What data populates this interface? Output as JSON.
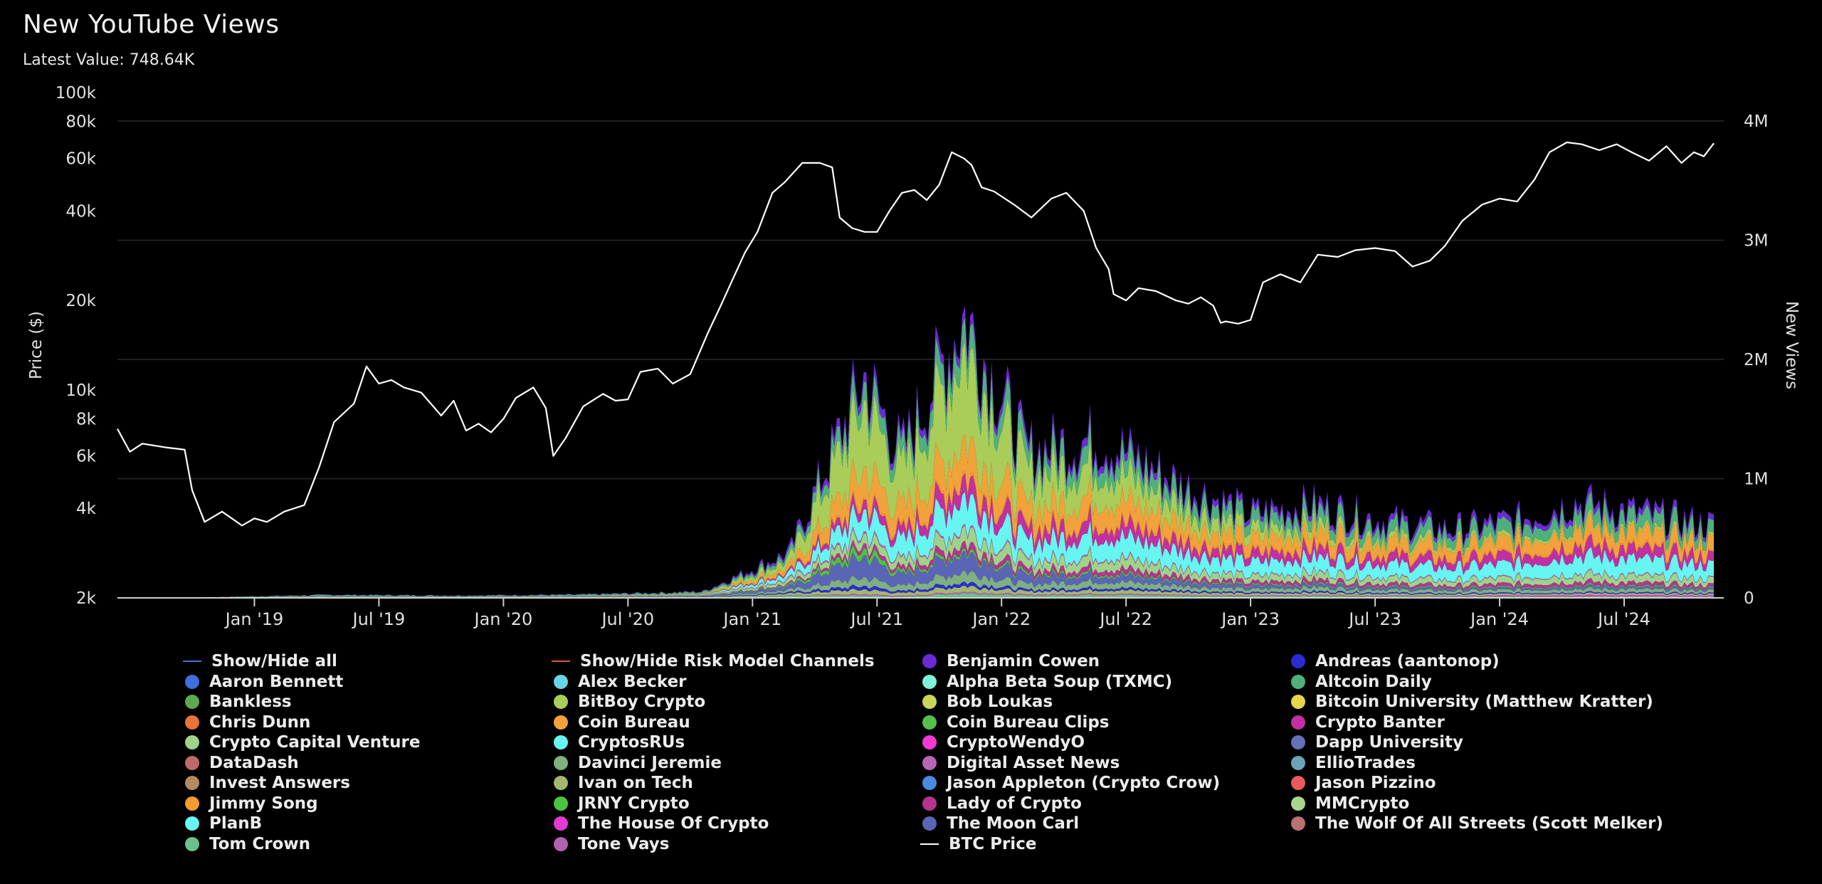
{
  "header": {
    "title": "New YouTube Views",
    "latest": "Latest Value: 748.64K"
  },
  "chart_data": {
    "type": "area",
    "title": "New YouTube Views",
    "ylabel_left": "Price ($)",
    "ylabel_right": "New Views",
    "left_axis": {
      "scale": "log",
      "ylim": [
        2000,
        100000
      ],
      "ticks": [
        2000,
        4000,
        6000,
        8000,
        10000,
        20000,
        40000,
        60000,
        80000,
        100000
      ],
      "tick_labels": [
        "2k",
        "4k",
        "6k",
        "8k",
        "10k",
        "20k",
        "40k",
        "60k",
        "80k",
        "100k"
      ]
    },
    "right_axis": {
      "scale": "linear",
      "ylim": [
        0,
        4000000
      ],
      "ticks": [
        0,
        1000000,
        2000000,
        3000000,
        4000000
      ],
      "tick_labels": [
        "0",
        "1M",
        "2M",
        "3M",
        "4M"
      ]
    },
    "x_axis": {
      "start": 2018.45,
      "end": 2024.9,
      "ticks": [
        2019.0,
        2019.5,
        2020.0,
        2020.5,
        2021.0,
        2021.5,
        2022.0,
        2022.5,
        2023.0,
        2023.5,
        2024.0,
        2024.5
      ],
      "tick_labels": [
        "Jan '19",
        "Jul '19",
        "Jan '20",
        "Jul '20",
        "Jan '21",
        "Jul '21",
        "Jan '22",
        "Jul '22",
        "Jan '23",
        "Jul '23",
        "Jan '24",
        "Jul '24"
      ]
    },
    "btc_price": {
      "name": "BTC Price",
      "color": "#ffffff",
      "x": [
        2018.45,
        2018.5,
        2018.55,
        2018.65,
        2018.72,
        2018.75,
        2018.8,
        2018.87,
        2018.95,
        2019.0,
        2019.05,
        2019.12,
        2019.2,
        2019.26,
        2019.32,
        2019.4,
        2019.45,
        2019.5,
        2019.55,
        2019.6,
        2019.67,
        2019.75,
        2019.8,
        2019.85,
        2019.9,
        2019.95,
        2020.0,
        2020.05,
        2020.12,
        2020.17,
        2020.2,
        2020.25,
        2020.32,
        2020.4,
        2020.45,
        2020.5,
        2020.55,
        2020.62,
        2020.68,
        2020.75,
        2020.82,
        2020.87,
        2020.92,
        2020.97,
        2021.02,
        2021.08,
        2021.13,
        2021.2,
        2021.27,
        2021.32,
        2021.35,
        2021.4,
        2021.45,
        2021.5,
        2021.55,
        2021.6,
        2021.65,
        2021.7,
        2021.75,
        2021.8,
        2021.85,
        2021.88,
        2021.92,
        2021.97,
        2022.05,
        2022.12,
        2022.2,
        2022.26,
        2022.33,
        2022.38,
        2022.43,
        2022.45,
        2022.5,
        2022.55,
        2022.62,
        2022.7,
        2022.75,
        2022.8,
        2022.85,
        2022.88,
        2022.9,
        2022.95,
        2023.0,
        2023.05,
        2023.12,
        2023.2,
        2023.27,
        2023.35,
        2023.42,
        2023.5,
        2023.58,
        2023.65,
        2023.72,
        2023.78,
        2023.85,
        2023.93,
        2024.0,
        2024.07,
        2024.14,
        2024.2,
        2024.27,
        2024.33,
        2024.4,
        2024.47,
        2024.53,
        2024.6,
        2024.67,
        2024.73,
        2024.78,
        2024.82,
        2024.86
      ],
      "y": [
        7400,
        6200,
        6600,
        6400,
        6300,
        4600,
        3600,
        3900,
        3500,
        3700,
        3600,
        3900,
        4100,
        5500,
        7800,
        9000,
        12000,
        10500,
        10800,
        10200,
        9800,
        8200,
        9200,
        7300,
        7700,
        7200,
        8000,
        9400,
        10200,
        8700,
        6000,
        6900,
        8800,
        9700,
        9200,
        9300,
        11500,
        11800,
        10500,
        11300,
        15500,
        19000,
        23500,
        29000,
        34000,
        46000,
        50000,
        58000,
        58000,
        56000,
        38000,
        35000,
        34000,
        34000,
        40000,
        46000,
        47000,
        43500,
        49000,
        63000,
        60000,
        57000,
        48000,
        46500,
        42000,
        38000,
        44000,
        46000,
        40000,
        30000,
        25500,
        21000,
        20000,
        22000,
        21500,
        20000,
        19500,
        20500,
        19200,
        16800,
        17000,
        16700,
        17200,
        23000,
        24500,
        23000,
        28500,
        28000,
        29500,
        30000,
        29300,
        26000,
        27200,
        30500,
        37000,
        42000,
        44000,
        43000,
        51000,
        63000,
        68000,
        67000,
        64000,
        67000,
        63000,
        59000,
        66000,
        58000,
        63000,
        61000,
        67500
      ]
    },
    "stack_series": [
      {
        "name": "Tom Crown",
        "color": "#6bbf8b",
        "values": [
          0,
          1000,
          3000,
          1500,
          2000,
          3000,
          18000,
          22000,
          10000,
          42000,
          20000,
          28000,
          20000,
          13000,
          18000,
          14000,
          12000,
          12000,
          12000,
          10000
        ]
      },
      {
        "name": "The House Of Crypto",
        "color": "#e33ad6",
        "values": [
          0,
          0,
          0,
          0,
          0,
          0,
          2000,
          8000,
          5000,
          9000,
          6000,
          8000,
          6000,
          5000,
          6000,
          5000,
          4000,
          8000,
          12000,
          9000
        ]
      },
      {
        "name": "Ivan on Tech",
        "color": "#a3b86a",
        "values": [
          0,
          0,
          0,
          0,
          1000,
          2000,
          15000,
          40000,
          22000,
          50000,
          25000,
          32000,
          25000,
          16000,
          20000,
          16000,
          13000,
          13000,
          15000,
          12000
        ]
      },
      {
        "name": "Andreas (aantonop)",
        "color": "#2b2bd6",
        "values": [
          0,
          0,
          1000,
          1000,
          1000,
          2000,
          10000,
          30000,
          15000,
          32000,
          15000,
          20000,
          14000,
          10000,
          12000,
          10000,
          8000,
          8000,
          9000,
          8000
        ]
      },
      {
        "name": "Davinci Jeremie",
        "color": "#7fb07f",
        "values": [
          0,
          1000,
          4000,
          2000,
          2000,
          4000,
          20000,
          70000,
          40000,
          90000,
          45000,
          55000,
          38000,
          26000,
          34000,
          26000,
          22000,
          25000,
          30000,
          22000
        ]
      },
      {
        "name": "The Moon Carl",
        "color": "#5a66b5",
        "values": [
          0,
          0,
          0,
          0,
          1000,
          3000,
          30000,
          180000,
          90000,
          160000,
          70000,
          60000,
          40000,
          25000,
          25000,
          20000,
          15000,
          16000,
          20000,
          14000
        ]
      },
      {
        "name": "JRNY Crypto",
        "color": "#4cc441",
        "values": [
          0,
          0,
          0,
          0,
          0,
          0,
          10000,
          60000,
          20000,
          25000,
          14000,
          16000,
          12000,
          9000,
          10000,
          8000,
          7000,
          8000,
          9000,
          7000
        ]
      },
      {
        "name": "Lady of Crypto",
        "color": "#b5338f",
        "values": [
          0,
          0,
          0,
          1000,
          1000,
          2000,
          10000,
          40000,
          30000,
          60000,
          35000,
          45000,
          35000,
          25000,
          32000,
          26000,
          22000,
          26000,
          32000,
          25000
        ]
      },
      {
        "name": "Crypto Capital Venture",
        "color": "#9fd38a",
        "values": [
          0,
          0,
          2000,
          2000,
          3000,
          5000,
          30000,
          80000,
          60000,
          120000,
          70000,
          90000,
          60000,
          45000,
          55000,
          48000,
          40000,
          46000,
          60000,
          45000
        ]
      },
      {
        "name": "Tone Vays",
        "color": "#b260b0",
        "values": [
          0,
          1000,
          3000,
          2000,
          2000,
          3000,
          10000,
          20000,
          12000,
          18000,
          12000,
          14000,
          10000,
          8000,
          9000,
          8000,
          7000,
          8000,
          9000,
          7000
        ]
      },
      {
        "name": "CryptosRUs",
        "color": "#67f5f2",
        "values": [
          0,
          0,
          2000,
          2000,
          3000,
          5000,
          40000,
          180000,
          150000,
          260000,
          150000,
          180000,
          140000,
          110000,
          120000,
          110000,
          100000,
          110000,
          150000,
          110000
        ]
      },
      {
        "name": "Crypto Banter",
        "color": "#c22fa0",
        "values": [
          0,
          0,
          0,
          0,
          0,
          1000,
          15000,
          80000,
          70000,
          150000,
          90000,
          110000,
          85000,
          70000,
          80000,
          72000,
          65000,
          75000,
          95000,
          70000
        ]
      },
      {
        "name": "Jimmy Song",
        "color": "#f29b2f",
        "values": [
          0,
          0,
          0,
          0,
          0,
          0,
          5000,
          20000,
          15000,
          25000,
          15000,
          18000,
          15000,
          12000,
          14000,
          12000,
          11000,
          12000,
          14000,
          12000
        ]
      },
      {
        "name": "Coin Bureau",
        "color": "#f2a23a",
        "values": [
          0,
          0,
          0,
          0,
          1000,
          3000,
          40000,
          250000,
          180000,
          300000,
          180000,
          200000,
          150000,
          110000,
          130000,
          110000,
          95000,
          110000,
          140000,
          105000
        ]
      },
      {
        "name": "BitBoy Crypto",
        "color": "#a9cd58",
        "values": [
          0,
          0,
          1000,
          1000,
          2000,
          5000,
          60000,
          550000,
          320000,
          750000,
          300000,
          250000,
          150000,
          80000,
          70000,
          40000,
          30000,
          25000,
          25000,
          20000
        ]
      },
      {
        "name": "Altcoin Daily",
        "color": "#4fb07d",
        "values": [
          0,
          2000,
          8000,
          6000,
          6000,
          10000,
          40000,
          150000,
          120000,
          200000,
          130000,
          150000,
          120000,
          95000,
          105000,
          95000,
          85000,
          95000,
          120000,
          90000
        ]
      },
      {
        "name": "Benjamin Cowen",
        "color": "#6c2ad6",
        "values": [
          0,
          0,
          2000,
          2000,
          3000,
          5000,
          30000,
          80000,
          60000,
          90000,
          60000,
          70000,
          55000,
          45000,
          50000,
          45000,
          42000,
          45000,
          55000,
          43000
        ]
      }
    ],
    "stack_x": [
      2018.45,
      2018.8,
      2019.3,
      2019.8,
      2020.3,
      2020.8,
      2021.15,
      2021.45,
      2021.6,
      2021.85,
      2022.1,
      2022.4,
      2022.7,
      2023.0,
      2023.25,
      2023.5,
      2023.8,
      2024.05,
      2024.3,
      2024.86
    ],
    "legend": [
      {
        "label": "Show/Hide all",
        "color": "#4a6fd9",
        "marker": "line"
      },
      {
        "label": "Show/Hide Risk Model Channels",
        "color": "#e0583b",
        "marker": "line"
      },
      {
        "label": "Benjamin Cowen",
        "color": "#6c2ad6",
        "marker": "dot"
      },
      {
        "label": "Andreas (aantonop)",
        "color": "#2b2bd6",
        "marker": "dot"
      },
      {
        "label": "Aaron Bennett",
        "color": "#3e6fdc",
        "marker": "dot"
      },
      {
        "label": "Alex Becker",
        "color": "#66d6e6",
        "marker": "dot"
      },
      {
        "label": "Alpha Beta Soup (TXMC)",
        "color": "#7ff2d8",
        "marker": "dot"
      },
      {
        "label": "Altcoin Daily",
        "color": "#4fb07d",
        "marker": "dot"
      },
      {
        "label": "Bankless",
        "color": "#5fa850",
        "marker": "dot"
      },
      {
        "label": "BitBoy Crypto",
        "color": "#a9cd58",
        "marker": "dot"
      },
      {
        "label": "Bob Loukas",
        "color": "#c9d65a",
        "marker": "dot"
      },
      {
        "label": "Bitcoin University (Matthew Kratter)",
        "color": "#e6d44a",
        "marker": "dot"
      },
      {
        "label": "Chris Dunn",
        "color": "#e8743a",
        "marker": "dot"
      },
      {
        "label": "Coin Bureau",
        "color": "#f2a23a",
        "marker": "dot"
      },
      {
        "label": "Coin Bureau Clips",
        "color": "#54c24a",
        "marker": "dot"
      },
      {
        "label": "Crypto Banter",
        "color": "#c22fa0",
        "marker": "dot"
      },
      {
        "label": "Crypto Capital Venture",
        "color": "#9fd38a",
        "marker": "dot"
      },
      {
        "label": "CryptosRUs",
        "color": "#67f5f2",
        "marker": "dot"
      },
      {
        "label": "CryptoWendyO",
        "color": "#f23ad2",
        "marker": "dot"
      },
      {
        "label": "Dapp University",
        "color": "#6470b8",
        "marker": "dot"
      },
      {
        "label": "DataDash",
        "color": "#c06a6a",
        "marker": "dot"
      },
      {
        "label": "Davinci Jeremie",
        "color": "#7fb07f",
        "marker": "dot"
      },
      {
        "label": "Digital Asset News",
        "color": "#b865b5",
        "marker": "dot"
      },
      {
        "label": "EllioTrades",
        "color": "#6aa6b5",
        "marker": "dot"
      },
      {
        "label": "Invest Answers",
        "color": "#b58a5e",
        "marker": "dot"
      },
      {
        "label": "Ivan on Tech",
        "color": "#a3b86a",
        "marker": "dot"
      },
      {
        "label": "Jason Appleton (Crypto Crow)",
        "color": "#4a8be0",
        "marker": "dot"
      },
      {
        "label": "Jason Pizzino",
        "color": "#e85a5a",
        "marker": "dot"
      },
      {
        "label": "Jimmy Song",
        "color": "#f29b2f",
        "marker": "dot"
      },
      {
        "label": "JRNY Crypto",
        "color": "#4cc441",
        "marker": "dot"
      },
      {
        "label": "Lady of Crypto",
        "color": "#b5338f",
        "marker": "dot"
      },
      {
        "label": "MMCrypto",
        "color": "#a9d68e",
        "marker": "dot"
      },
      {
        "label": "PlanB",
        "color": "#67f5f5",
        "marker": "dot"
      },
      {
        "label": "The House Of Crypto",
        "color": "#e33ad6",
        "marker": "dot"
      },
      {
        "label": "The Moon Carl",
        "color": "#5a66b5",
        "marker": "dot"
      },
      {
        "label": "The Wolf Of All Streets (Scott Melker)",
        "color": "#b87070",
        "marker": "dot"
      },
      {
        "label": "Tom Crown",
        "color": "#6bbf8b",
        "marker": "dot"
      },
      {
        "label": "Tone Vays",
        "color": "#b260b0",
        "marker": "dot"
      },
      {
        "label": "BTC Price",
        "color": "#ffffff",
        "marker": "line"
      }
    ]
  }
}
